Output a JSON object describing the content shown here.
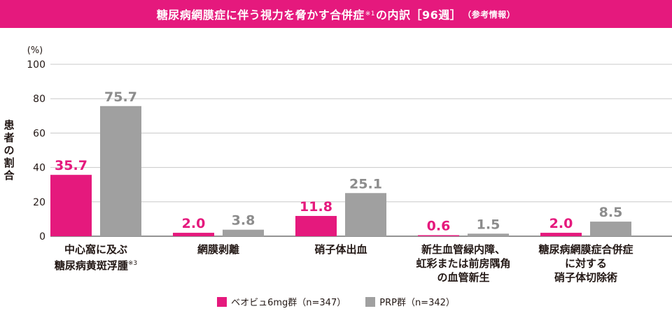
{
  "header": {
    "title_main": "糖尿病網膜症に伴う視力を脅かす合併症",
    "title_note": "※1",
    "title_tail": "の内訳［96週］",
    "title_paren": "（参考情報）"
  },
  "colors": {
    "banner": "#e5197d",
    "series1": "#e5197d",
    "series2": "#a0a0a0"
  },
  "chart_data": {
    "type": "bar",
    "title": "糖尿病網膜症に伴う視力を脅かす合併症※1の内訳［96週］（参考情報）",
    "ylabel": "患者の割合",
    "yunit": "(%)",
    "ylim": [
      0,
      100
    ],
    "yticks": [
      "100",
      "80",
      "60",
      "40",
      "20",
      "0"
    ],
    "grid": true,
    "categories": [
      [
        "中心窩に及ぶ",
        "糖尿病黄斑浮腫"
      ],
      [
        "網膜剥離"
      ],
      [
        "硝子体出血"
      ],
      [
        "新生血管緑内障、",
        "虹彩または前房隅角",
        "の血管新生"
      ],
      [
        "糖尿病網膜症合併症",
        "に対する",
        "硝子体切除術"
      ]
    ],
    "category_notes": [
      "※3",
      "",
      "",
      "",
      ""
    ],
    "series": [
      {
        "name": "ベオビュ6mg群（n=347）",
        "values": [
          35.7,
          2.0,
          11.8,
          0.6,
          2.0
        ],
        "labels": [
          "35.7",
          "2.0",
          "11.8",
          "0.6",
          "2.0"
        ]
      },
      {
        "name": "PRP群（n=342）",
        "values": [
          75.7,
          3.8,
          25.1,
          1.5,
          8.5
        ],
        "labels": [
          "75.7",
          "3.8",
          "25.1",
          "1.5",
          "8.5"
        ]
      }
    ],
    "legend_position": "bottom"
  }
}
